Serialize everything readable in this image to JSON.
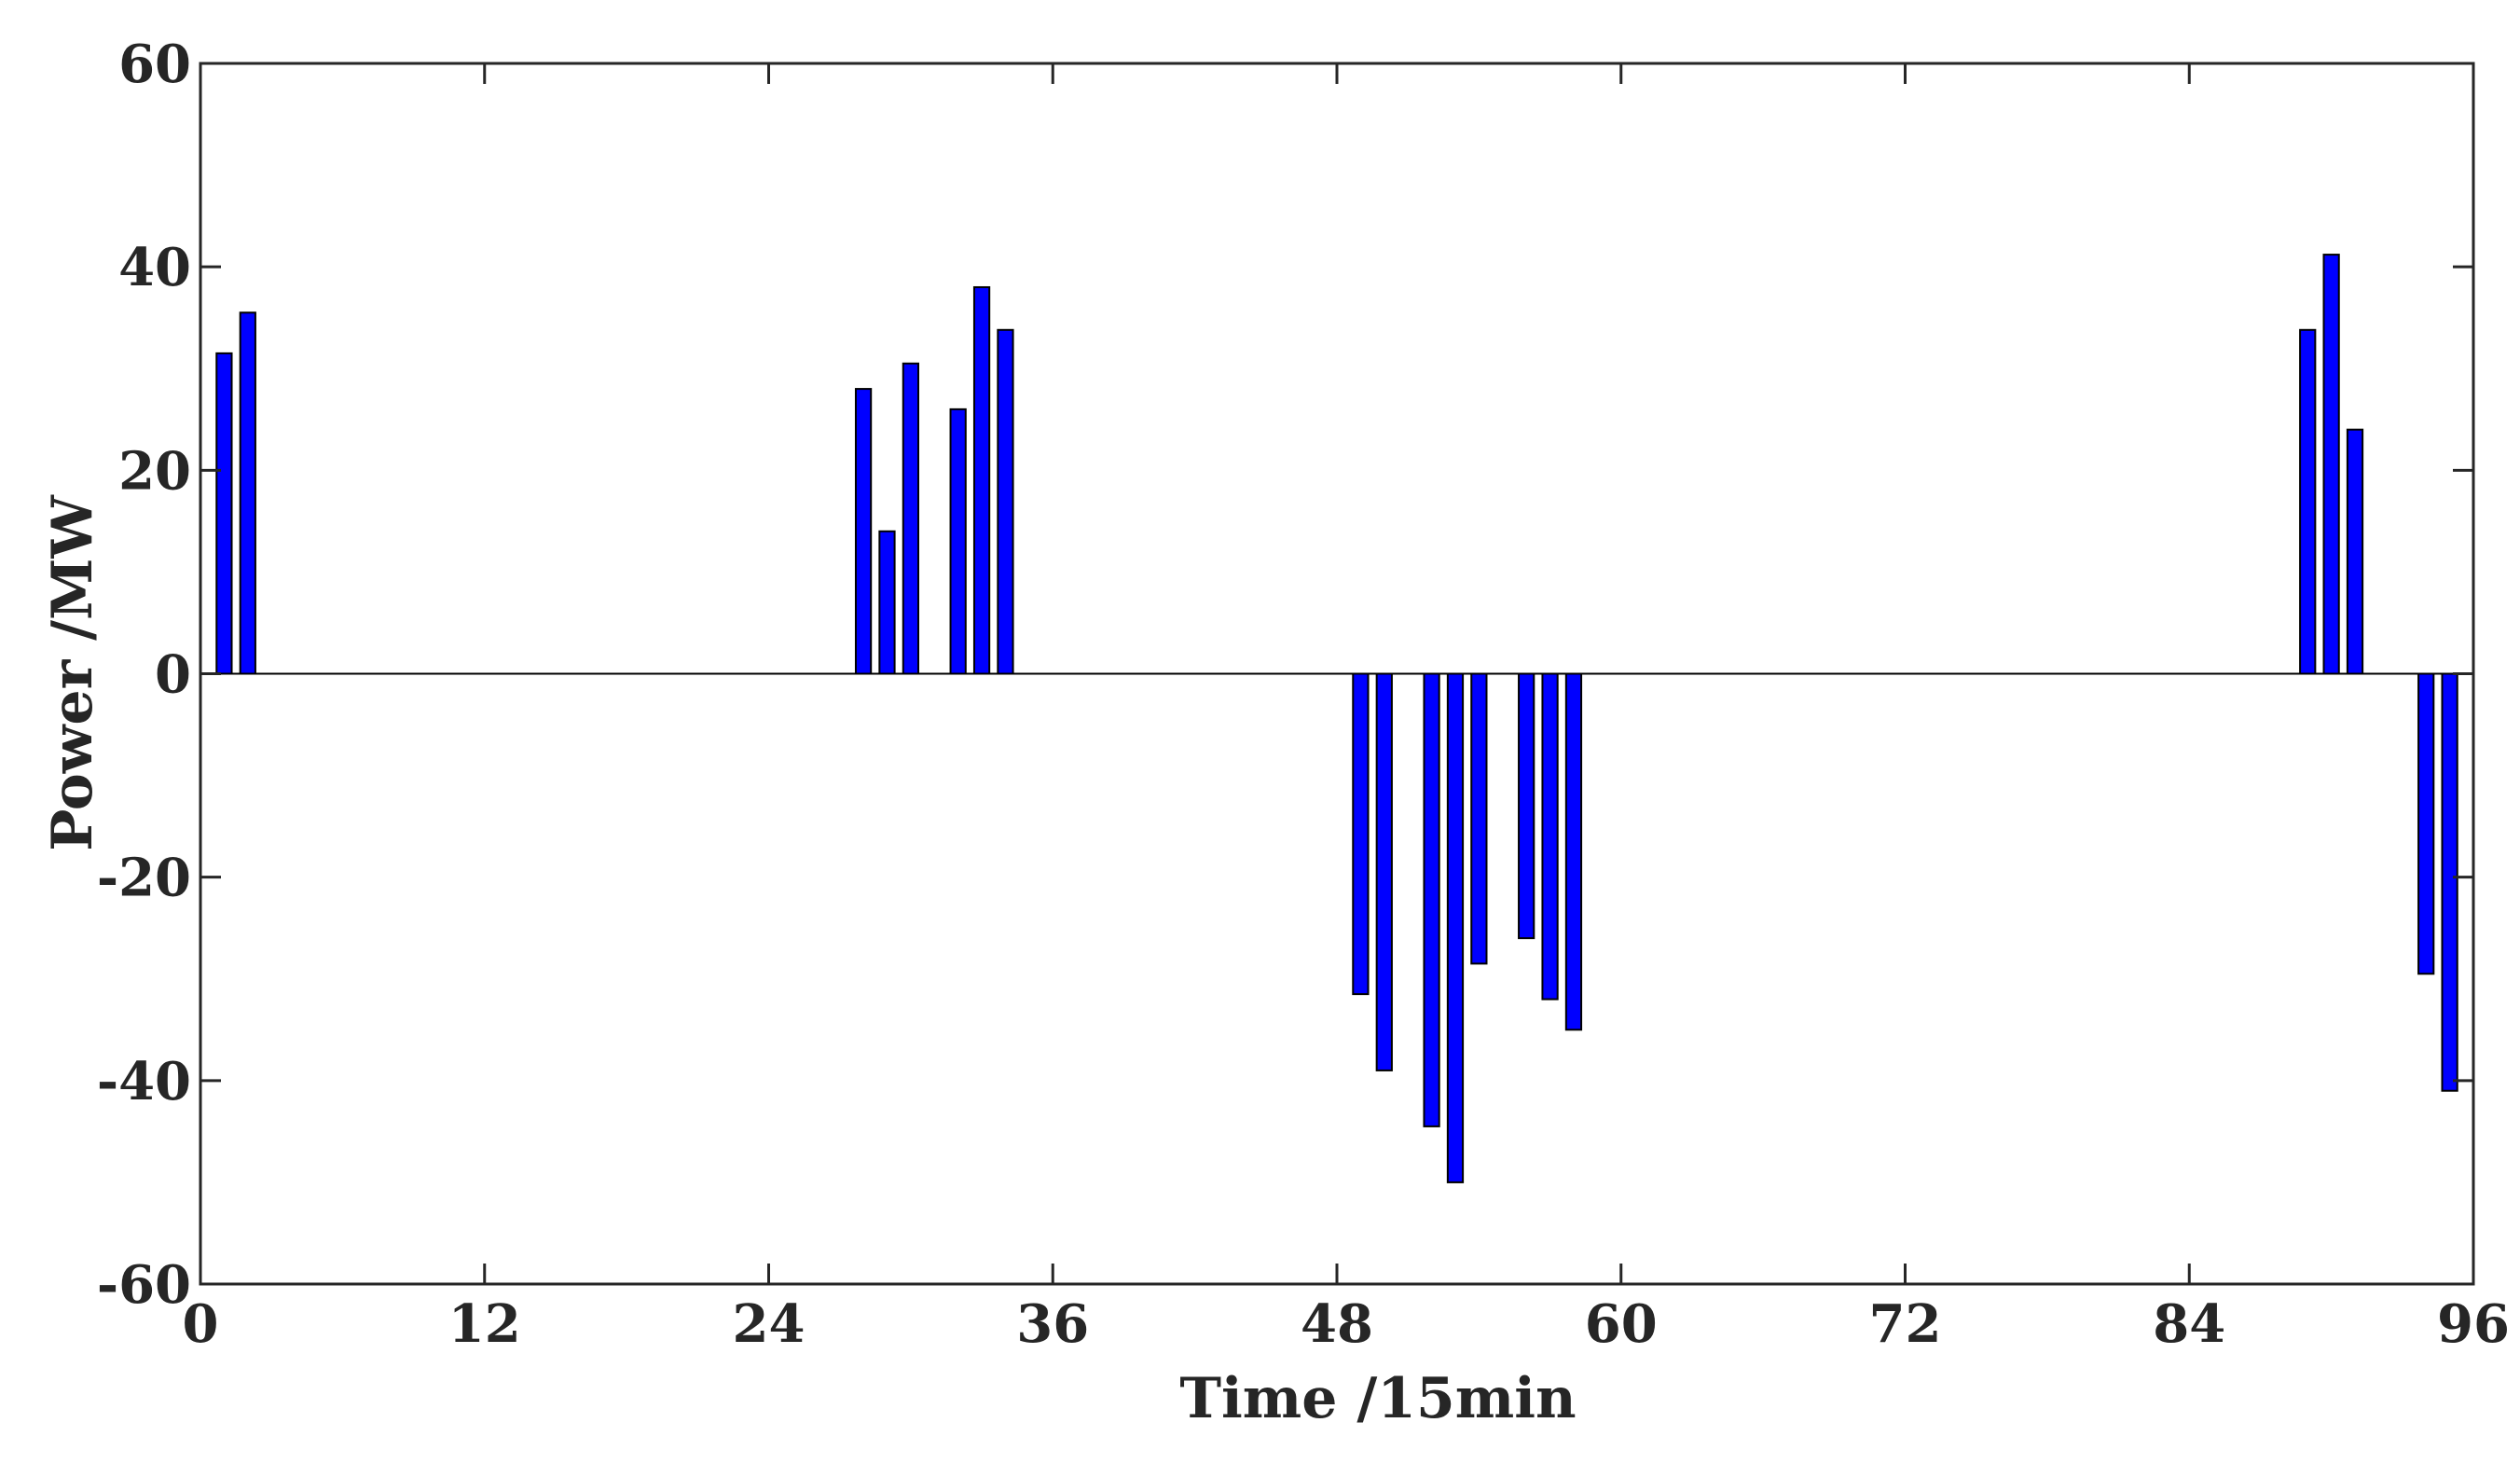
{
  "chart_data": {
    "type": "bar",
    "title": "",
    "xlabel": "Time /15min",
    "ylabel": "Power /MW",
    "xlim": [
      0,
      96
    ],
    "ylim": [
      -60,
      60
    ],
    "xticks": [
      0,
      12,
      24,
      36,
      48,
      60,
      72,
      84,
      96
    ],
    "yticks": [
      -60,
      -40,
      -20,
      0,
      20,
      40,
      60
    ],
    "grid": false,
    "legend": "none",
    "bar_color": "#0000ff",
    "bar_edge_color": "#000000",
    "series": [
      {
        "x": [
          1,
          2,
          28,
          29,
          30,
          32,
          33,
          34,
          49,
          50,
          52,
          53,
          54,
          56,
          57,
          58,
          89,
          90,
          91,
          94,
          95
        ],
        "values": [
          31.5,
          35.5,
          28,
          14,
          30.5,
          26,
          38,
          33.8,
          -31.5,
          -39,
          -44.5,
          -50,
          -28.5,
          -26,
          -32,
          -35,
          33.8,
          41.2,
          24,
          -29.5,
          -41
        ]
      }
    ]
  }
}
